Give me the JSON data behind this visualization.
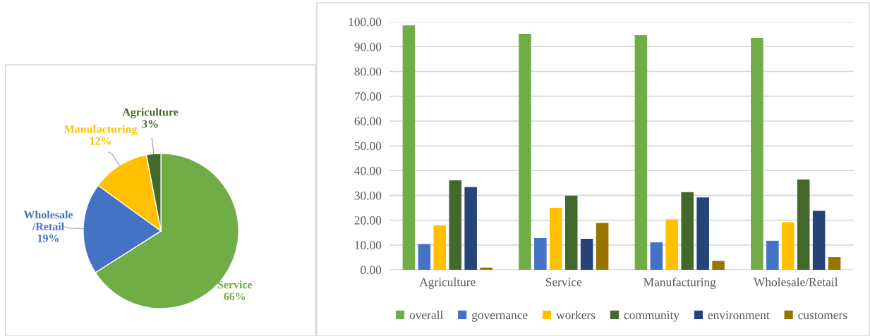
{
  "chart_data": [
    {
      "type": "pie",
      "categories": [
        "Service",
        "Wholesale\n/Retail",
        "Manufacturing",
        "Agriculture"
      ],
      "values": [
        66,
        19,
        12,
        3
      ],
      "value_labels": [
        "66%",
        "19%",
        "12%",
        "3%"
      ],
      "colors": [
        "#70ad47",
        "#4472c4",
        "#ffc000",
        "#43682b"
      ]
    },
    {
      "type": "bar",
      "categories": [
        "Agriculture",
        "Service",
        "Manufacturing",
        "Wholesale/Retail"
      ],
      "series": [
        {
          "name": "overall",
          "color": "#70ad47",
          "values": [
            98.6,
            95.2,
            94.6,
            93.5
          ]
        },
        {
          "name": "governance",
          "color": "#4472c4",
          "values": [
            10.4,
            12.8,
            11.1,
            11.7
          ]
        },
        {
          "name": "workers",
          "color": "#ffc000",
          "values": [
            17.9,
            25.0,
            20.3,
            19.2
          ]
        },
        {
          "name": "community",
          "color": "#43682b",
          "values": [
            36.1,
            29.9,
            31.3,
            36.4
          ]
        },
        {
          "name": "environment",
          "color": "#264478",
          "values": [
            33.4,
            12.5,
            29.2,
            23.8
          ]
        },
        {
          "name": "customers",
          "color": "#997300",
          "values": [
            0.9,
            18.9,
            3.6,
            5.1
          ]
        }
      ],
      "ylim": [
        0,
        100
      ],
      "yticks": [
        {
          "value": 0,
          "label": "0.00"
        },
        {
          "value": 10,
          "label": "10.00"
        },
        {
          "value": 20,
          "label": "20.00"
        },
        {
          "value": 30,
          "label": "30.00"
        },
        {
          "value": 40,
          "label": "40.00"
        },
        {
          "value": 50,
          "label": "50.00"
        },
        {
          "value": 60,
          "label": "60.00"
        },
        {
          "value": 70,
          "label": "70.00"
        },
        {
          "value": 80,
          "label": "80.00"
        },
        {
          "value": 90,
          "label": "90.00"
        },
        {
          "value": 100,
          "label": "100.00"
        }
      ],
      "grid": "y",
      "legend": "bottom"
    }
  ]
}
